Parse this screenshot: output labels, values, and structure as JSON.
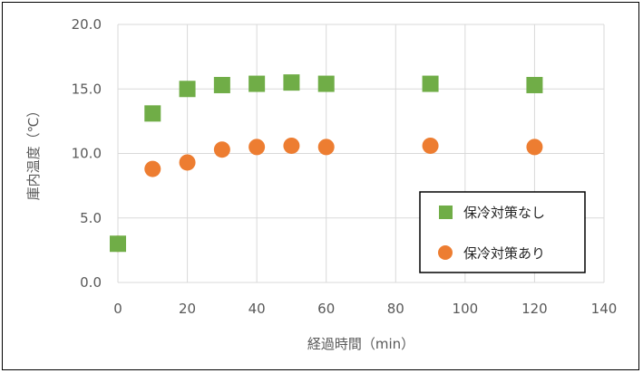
{
  "chart_data": {
    "type": "scatter",
    "xlabel": "経過時間（min）",
    "ylabel": "庫内温度（℃）",
    "xlim": [
      0,
      140
    ],
    "ylim": [
      0,
      20
    ],
    "x_ticks": [
      "0",
      "20",
      "40",
      "60",
      "80",
      "100",
      "120",
      "140"
    ],
    "y_ticks": [
      "0.0",
      "5.0",
      "10.0",
      "15.0",
      "20.0"
    ],
    "grid": true,
    "legend_position": "bottom-right",
    "series": [
      {
        "name": "保冷対策なし",
        "marker": "square",
        "color": "#70AD47",
        "points": [
          [
            0,
            3.0
          ],
          [
            10,
            13.1
          ],
          [
            20,
            15.0
          ],
          [
            30,
            15.3
          ],
          [
            40,
            15.4
          ],
          [
            50,
            15.5
          ],
          [
            60,
            15.4
          ],
          [
            90,
            15.4
          ],
          [
            120,
            15.3
          ]
        ]
      },
      {
        "name": "保冷対策あり",
        "marker": "circle",
        "color": "#ED7D31",
        "points": [
          [
            0,
            3.0
          ],
          [
            10,
            8.8
          ],
          [
            20,
            9.3
          ],
          [
            30,
            10.3
          ],
          [
            40,
            10.5
          ],
          [
            50,
            10.6
          ],
          [
            60,
            10.5
          ],
          [
            90,
            10.6
          ],
          [
            120,
            10.5
          ]
        ]
      }
    ]
  }
}
